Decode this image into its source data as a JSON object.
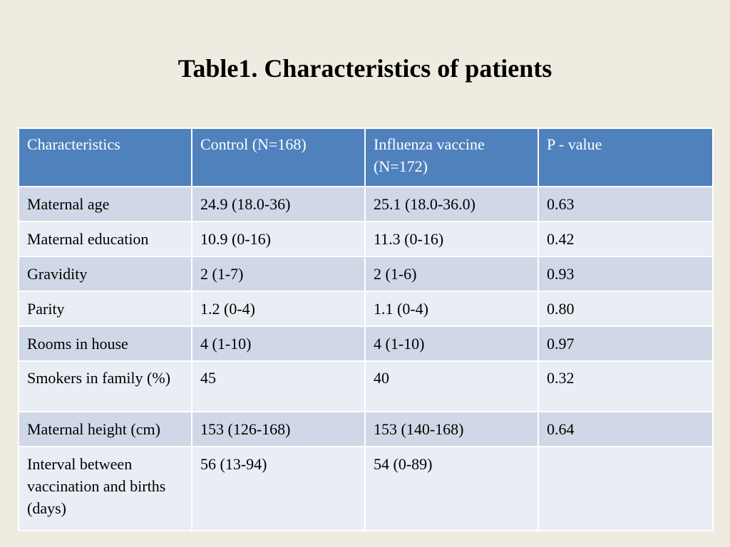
{
  "slide": {
    "title": "Table1. Characteristics of patients"
  },
  "table": {
    "headers": [
      "Characteristics",
      "Control (N=168)",
      "Influenza vaccine (N=172)",
      "P - value"
    ],
    "rows": [
      [
        "Maternal age",
        "24.9 (18.0-36)",
        "25.1 (18.0-36.0)",
        "0.63"
      ],
      [
        "Maternal education",
        "10.9 (0-16)",
        "11.3 (0-16)",
        "0.42"
      ],
      [
        "Gravidity",
        "2 (1-7)",
        "2 (1-6)",
        "0.93"
      ],
      [
        "Parity",
        "1.2 (0-4)",
        "1.1 (0-4)",
        "0.80"
      ],
      [
        "Rooms in house",
        "4 (1-10)",
        "4 (1-10)",
        "0.97"
      ],
      [
        "Smokers in family (%)",
        "45",
        "40",
        "0.32"
      ],
      [
        "Maternal height (cm)",
        "153 (126-168)",
        "153 (140-168)",
        "0.64"
      ],
      [
        "Interval between vaccination and births  (days)",
        "56 (13-94)",
        "54 (0-89)",
        ""
      ]
    ]
  },
  "colors": {
    "background": "#eeece1",
    "header": "#4f81bd",
    "row_odd": "#d0d8e8",
    "row_even": "#e9edf4"
  }
}
